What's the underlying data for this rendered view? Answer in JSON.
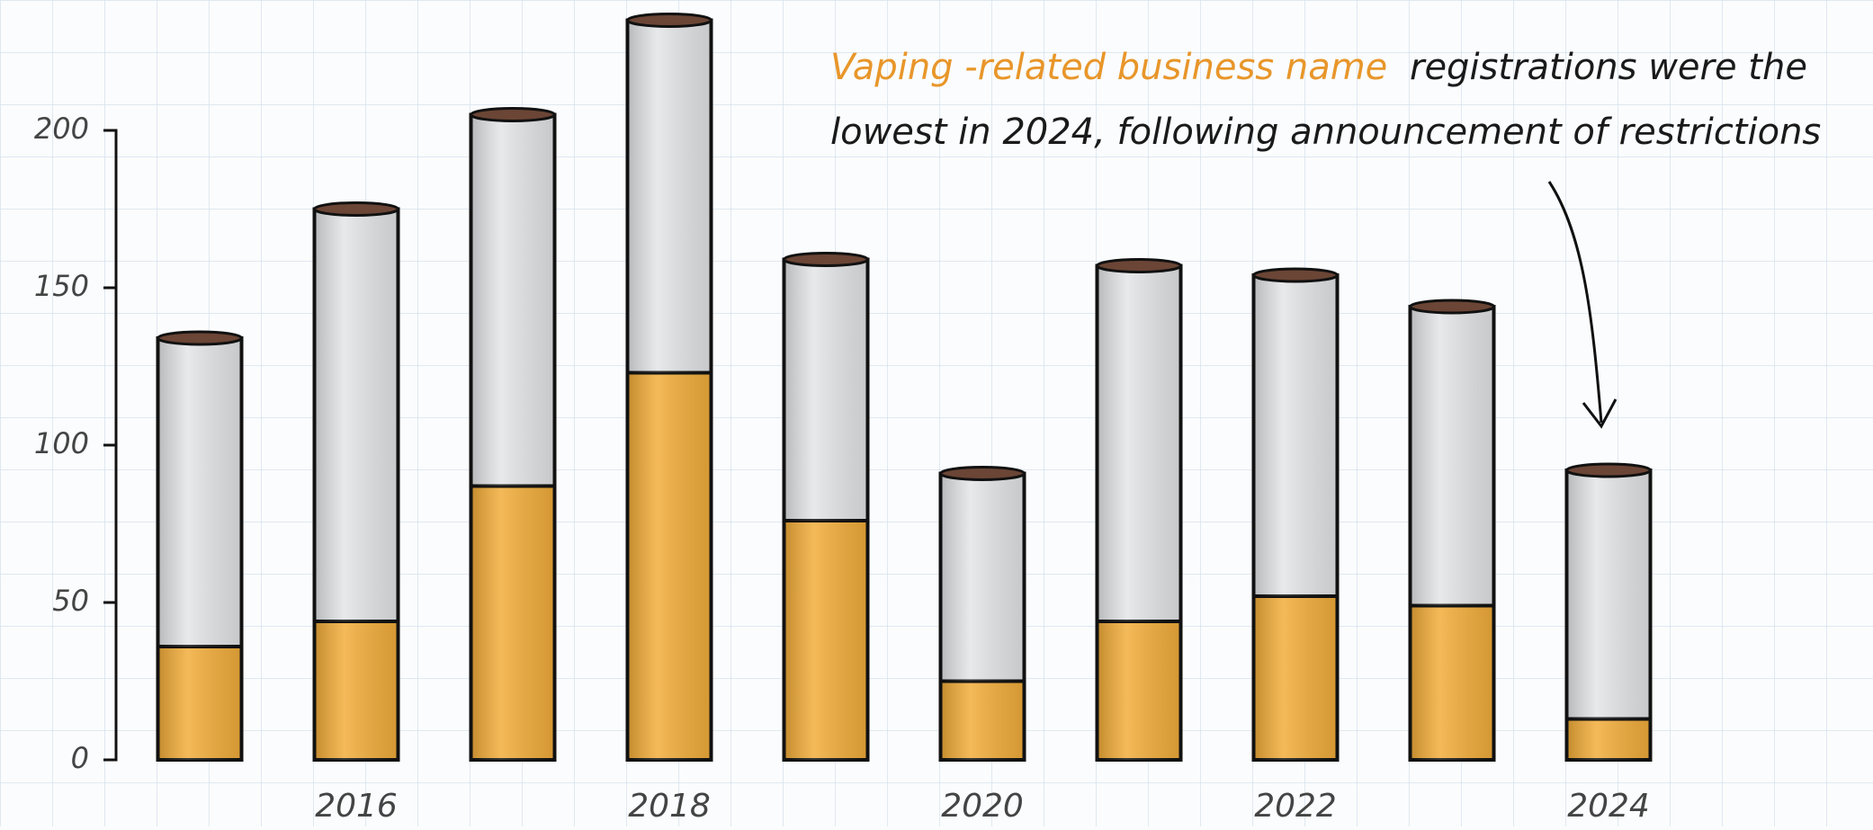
{
  "chart_data": {
    "type": "stacked_bar",
    "annotation": {
      "highlight": "Vaping -related business name",
      "rest": "registrations were the",
      "line2": "lowest in 2024, following announcement of restrictions"
    },
    "categories": [
      null,
      "2016",
      null,
      "2018",
      null,
      "2020",
      null,
      "2022",
      null,
      "2024"
    ],
    "series": [
      {
        "color": "#f2ad3b",
        "values": [
          36,
          44,
          87,
          123,
          76,
          25,
          44,
          52,
          49,
          13
        ]
      },
      {
        "color": "#e3e5e7",
        "values": [
          98,
          131,
          118,
          112,
          83,
          66,
          113,
          102,
          95,
          79
        ]
      }
    ],
    "ylim": [
      0,
      240
    ],
    "yticks": [
      0,
      50,
      100,
      150,
      200
    ],
    "grid": true
  }
}
